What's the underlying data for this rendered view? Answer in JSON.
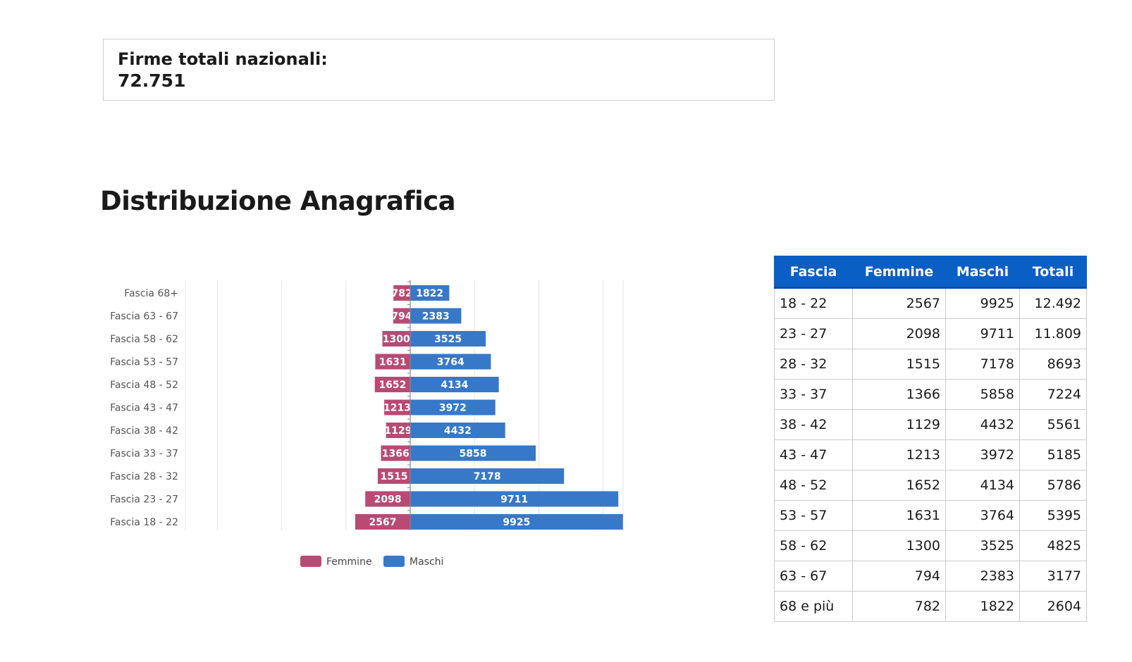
{
  "summary": {
    "label": "Firme totali nazionali:",
    "value": "72.751"
  },
  "section_title": "Distribuzione Anagrafica",
  "colors": {
    "femmine": "#b84a73",
    "maschi": "#3778c8",
    "table_header": "#0a5fc4"
  },
  "chart_data": {
    "type": "bar",
    "orientation": "horizontal-diverging",
    "categories": [
      "Fascia 68+",
      "Fascia 63 - 67",
      "Fascia 58 - 62",
      "Fascia 53 - 57",
      "Fascia 48 - 52",
      "Fascia 43 - 47",
      "Fascia 38 - 42",
      "Fascia 33 - 37",
      "Fascia 28 - 32",
      "Fascia 23 - 27",
      "Fascia 18 - 22"
    ],
    "series": [
      {
        "name": "Femmine",
        "values": [
          782,
          794,
          1300,
          1631,
          1652,
          1213,
          1129,
          1366,
          1515,
          2098,
          2567
        ]
      },
      {
        "name": "Maschi",
        "values": [
          1822,
          2383,
          3525,
          3764,
          4134,
          3972,
          4432,
          5858,
          7178,
          9711,
          9925
        ]
      }
    ],
    "legend": [
      "Femmine",
      "Maschi"
    ],
    "legend_position": "bottom-center",
    "grid": true
  },
  "table": {
    "headers": [
      "Fascia",
      "Femmine",
      "Maschi",
      "Totali"
    ],
    "rows": [
      [
        "18 - 22",
        "2567",
        "9925",
        "12.492"
      ],
      [
        "23 - 27",
        "2098",
        "9711",
        "11.809"
      ],
      [
        "28 - 32",
        "1515",
        "7178",
        "8693"
      ],
      [
        "33 - 37",
        "1366",
        "5858",
        "7224"
      ],
      [
        "38 - 42",
        "1129",
        "4432",
        "5561"
      ],
      [
        "43 - 47",
        "1213",
        "3972",
        "5185"
      ],
      [
        "48 - 52",
        "1652",
        "4134",
        "5786"
      ],
      [
        "53 - 57",
        "1631",
        "3764",
        "5395"
      ],
      [
        "58 - 62",
        "1300",
        "3525",
        "4825"
      ],
      [
        "63 - 67",
        "794",
        "2383",
        "3177"
      ],
      [
        "68 e più",
        "782",
        "1822",
        "2604"
      ]
    ]
  }
}
